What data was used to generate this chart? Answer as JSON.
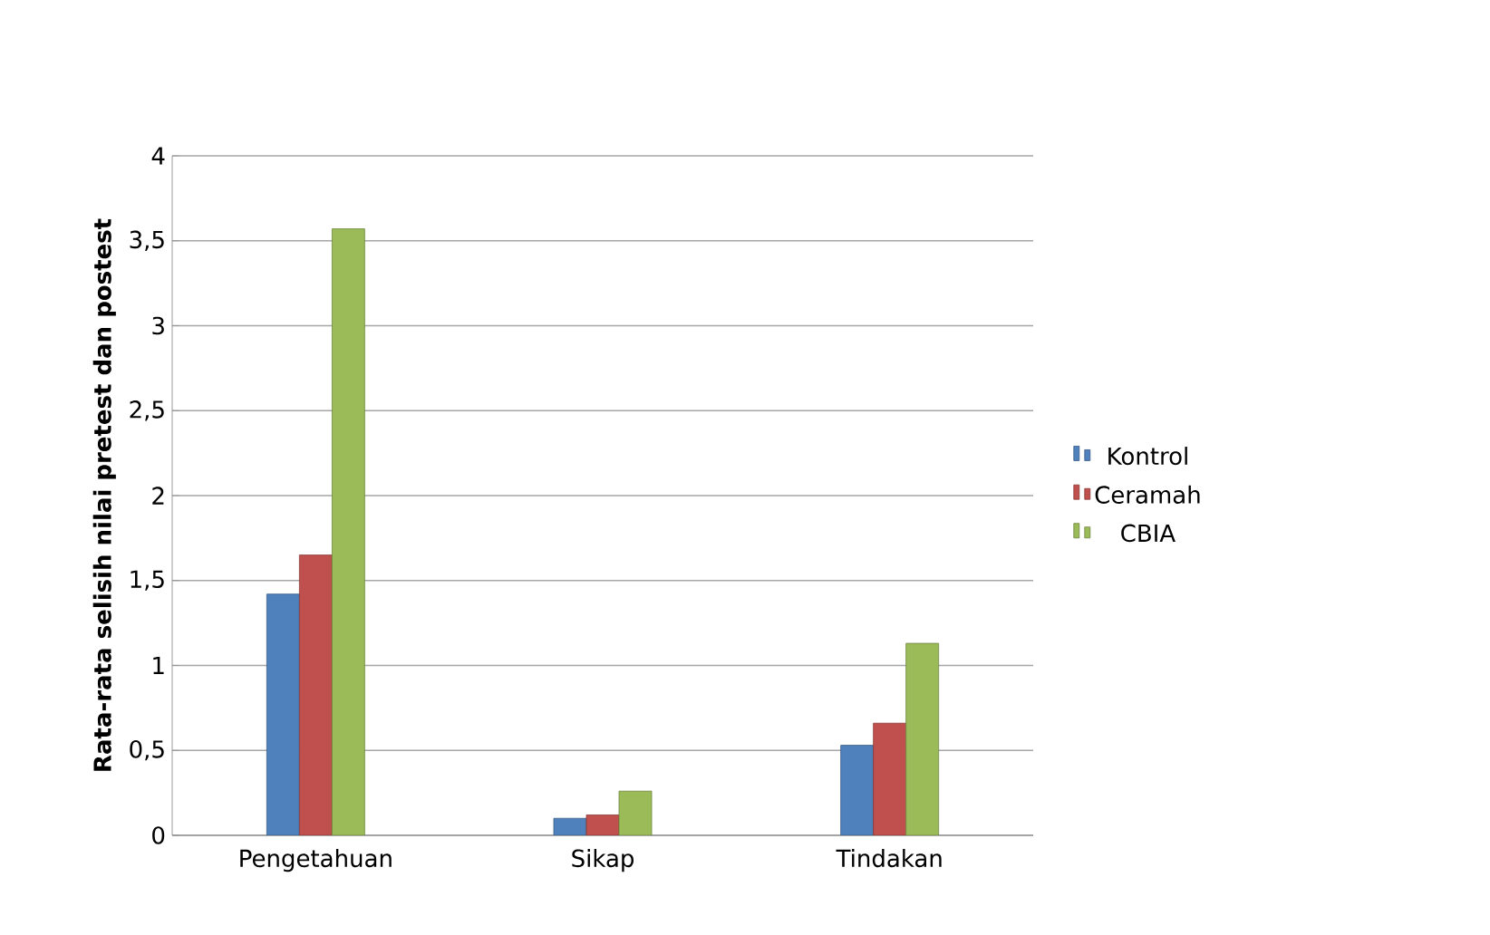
{
  "chart_data": {
    "type": "bar",
    "ylabel": "Rata-rata selisih nilai pretest dan postest",
    "categories": [
      "Pengetahuan",
      "Sikap",
      "Tindakan"
    ],
    "series": [
      {
        "name": "Kontrol",
        "color": "#4f81bd",
        "values": [
          1.42,
          0.1,
          0.53
        ]
      },
      {
        "name": "Ceramah",
        "color": "#c0504d",
        "values": [
          1.65,
          0.12,
          0.66
        ]
      },
      {
        "name": "CBIA",
        "color": "#9bbb59",
        "values": [
          3.57,
          0.26,
          1.13
        ]
      }
    ],
    "ylim": [
      0,
      4
    ],
    "yticks": [
      {
        "value": 0,
        "label": "0"
      },
      {
        "value": 0.5,
        "label": "0,5"
      },
      {
        "value": 1,
        "label": "1"
      },
      {
        "value": 1.5,
        "label": "1,5"
      },
      {
        "value": 2,
        "label": "2"
      },
      {
        "value": 2.5,
        "label": "2,5"
      },
      {
        "value": 3,
        "label": "3"
      },
      {
        "value": 3.5,
        "label": "3,5"
      },
      {
        "value": 4,
        "label": "4"
      }
    ],
    "grid": "y",
    "legend": "right"
  }
}
